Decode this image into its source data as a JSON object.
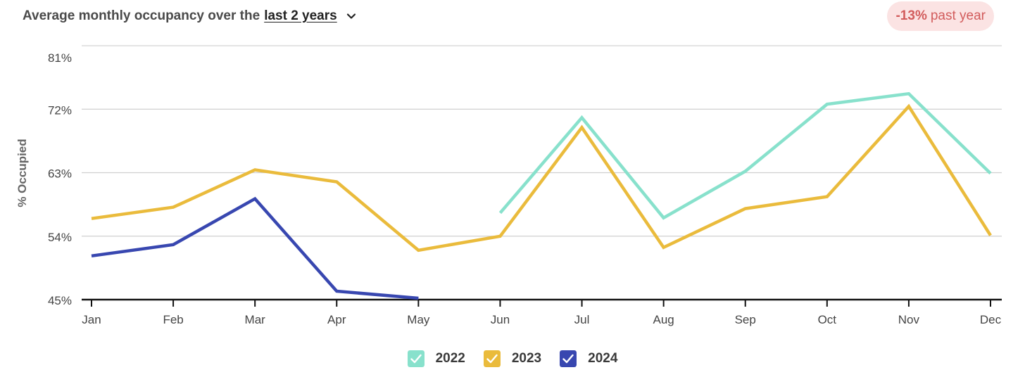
{
  "header": {
    "title_prefix": "Average monthly occupancy over the",
    "range_link": "last 2 years"
  },
  "badge": {
    "pct": "-13%",
    "label": "past year",
    "color": "#d25c5c",
    "bg": "#fbe3e3"
  },
  "chart_data": {
    "type": "line",
    "title": "Average monthly occupancy over the last 2 years",
    "ylabel": "% Occupied",
    "xlabel": "",
    "categories": [
      "Jan",
      "Feb",
      "Mar",
      "Apr",
      "May",
      "Jun",
      "Jul",
      "Aug",
      "Sep",
      "Oct",
      "Nov",
      "Dec"
    ],
    "ylim": [
      45,
      81
    ],
    "yticks": [
      45,
      54,
      63,
      72,
      81
    ],
    "ytick_labels": [
      "45%",
      "54%",
      "63%",
      "72%",
      "81%"
    ],
    "grid": true,
    "legend": "bottom-center",
    "series": [
      {
        "name": "2022",
        "color": "#88e1cc",
        "values": [
          null,
          null,
          null,
          null,
          null,
          57.3,
          70.8,
          56.6,
          63.2,
          72.7,
          74.2,
          62.9
        ]
      },
      {
        "name": "2023",
        "color": "#eabb3c",
        "values": [
          56.5,
          58.1,
          63.4,
          61.7,
          52.0,
          54.0,
          69.4,
          52.4,
          57.9,
          59.6,
          72.4,
          54.1
        ]
      },
      {
        "name": "2024",
        "color": "#3847b0",
        "values": [
          51.2,
          52.8,
          59.3,
          46.2,
          45.2,
          null,
          null,
          null,
          null,
          null,
          null,
          null
        ]
      }
    ]
  }
}
